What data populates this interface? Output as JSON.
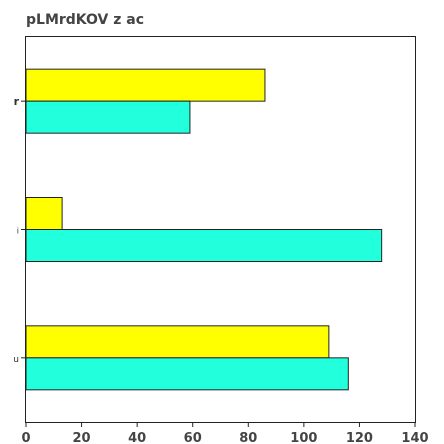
{
  "chart_data": {
    "type": "bar",
    "orientation": "horizontal",
    "title": "pLMrdKOV z ac",
    "xlabel": "",
    "ylabel": "",
    "categories": [
      "r",
      "i",
      "u"
    ],
    "series": [
      {
        "color": "#ffff00",
        "values": [
          86,
          13,
          109
        ]
      },
      {
        "color": "#22ffdd",
        "values": [
          59,
          128,
          116
        ]
      }
    ],
    "xlim": [
      0,
      140
    ],
    "xticks": [
      0,
      20,
      40,
      60,
      80,
      100,
      120,
      140
    ],
    "grid": false,
    "legend": "none"
  }
}
